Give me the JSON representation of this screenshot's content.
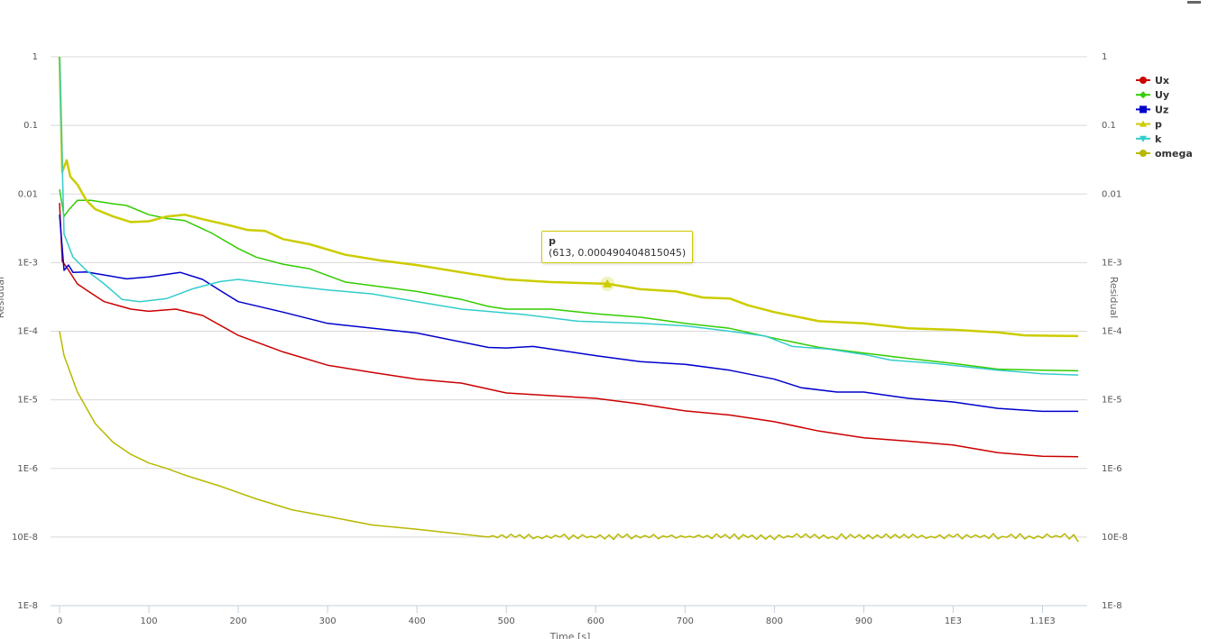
{
  "chart_data": {
    "type": "line",
    "title": "",
    "xlabel": "Time [s]",
    "ylabel": "Residual",
    "yscale": "log",
    "xlim": [
      0,
      1150
    ],
    "ylim": [
      1e-08,
      1
    ],
    "grid": true,
    "legend_position": "right",
    "x_ticks": [
      {
        "value": 0,
        "label": "0"
      },
      {
        "value": 100,
        "label": "100"
      },
      {
        "value": 200,
        "label": "200"
      },
      {
        "value": 300,
        "label": "300"
      },
      {
        "value": 400,
        "label": "400"
      },
      {
        "value": 500,
        "label": "500"
      },
      {
        "value": 600,
        "label": "600"
      },
      {
        "value": 700,
        "label": "700"
      },
      {
        "value": 800,
        "label": "800"
      },
      {
        "value": 900,
        "label": "900"
      },
      {
        "value": 1000,
        "label": "1E3"
      },
      {
        "value": 1100,
        "label": "1.1E3"
      }
    ],
    "y_ticks": [
      {
        "value": 1,
        "label": "1"
      },
      {
        "value": 0.1,
        "label": "0.1"
      },
      {
        "value": 0.01,
        "label": "0.01"
      },
      {
        "value": 0.001,
        "label": "1E-3"
      },
      {
        "value": 0.0001,
        "label": "1E-4"
      },
      {
        "value": 1e-05,
        "label": "1E-5"
      },
      {
        "value": 1e-06,
        "label": "1E-6"
      },
      {
        "value": 1e-07,
        "label": "10E-8"
      },
      {
        "value": 1e-08,
        "label": "1E-8"
      }
    ],
    "series": [
      {
        "name": "Ux",
        "color": "#cc0000",
        "marker": "circle",
        "width": 1.5,
        "points": [
          [
            0,
            0.0074
          ],
          [
            3,
            0.00105
          ],
          [
            10,
            0.00078
          ],
          [
            20,
            0.00049
          ],
          [
            30,
            0.0004
          ],
          [
            50,
            0.00027
          ],
          [
            80,
            0.00021
          ],
          [
            100,
            0.000195
          ],
          [
            130,
            0.00021
          ],
          [
            160,
            0.00017
          ],
          [
            200,
            8.7e-05
          ],
          [
            250,
            5e-05
          ],
          [
            300,
            3.2e-05
          ],
          [
            350,
            2.5e-05
          ],
          [
            400,
            2e-05
          ],
          [
            450,
            1.75e-05
          ],
          [
            500,
            1.26e-05
          ],
          [
            550,
            1.15e-05
          ],
          [
            600,
            1.05e-05
          ],
          [
            650,
            8.7e-06
          ],
          [
            700,
            6.9e-06
          ],
          [
            750,
            6e-06
          ],
          [
            800,
            4.8e-06
          ],
          [
            850,
            3.5e-06
          ],
          [
            900,
            2.8e-06
          ],
          [
            950,
            2.5e-06
          ],
          [
            1000,
            2.2e-06
          ],
          [
            1050,
            1.7e-06
          ],
          [
            1100,
            1.5e-06
          ],
          [
            1140,
            1.48e-06
          ]
        ]
      },
      {
        "name": "Uy",
        "color": "#33cc00",
        "marker": "diamond",
        "width": 1.5,
        "points": [
          [
            0,
            0.0117
          ],
          [
            5,
            0.0047
          ],
          [
            10,
            0.0058
          ],
          [
            20,
            0.0081
          ],
          [
            35,
            0.0081
          ],
          [
            60,
            0.0072
          ],
          [
            75,
            0.0068
          ],
          [
            100,
            0.005
          ],
          [
            120,
            0.0044
          ],
          [
            140,
            0.0041
          ],
          [
            170,
            0.0027
          ],
          [
            200,
            0.0016
          ],
          [
            220,
            0.0012
          ],
          [
            250,
            0.00095
          ],
          [
            280,
            0.00081
          ],
          [
            320,
            0.00052
          ],
          [
            400,
            0.00038
          ],
          [
            450,
            0.00029
          ],
          [
            480,
            0.00023
          ],
          [
            500,
            0.00021
          ],
          [
            550,
            0.00021
          ],
          [
            600,
            0.00018
          ],
          [
            650,
            0.00016
          ],
          [
            700,
            0.00013
          ],
          [
            750,
            0.00011
          ],
          [
            800,
            7.9e-05
          ],
          [
            850,
            5.8e-05
          ],
          [
            900,
            4.8e-05
          ],
          [
            950,
            4e-05
          ],
          [
            1000,
            3.4e-05
          ],
          [
            1050,
            2.8e-05
          ],
          [
            1100,
            2.7e-05
          ],
          [
            1140,
            2.65e-05
          ]
        ]
      },
      {
        "name": "Uz",
        "color": "#0000cc",
        "marker": "square",
        "width": 1.5,
        "points": [
          [
            0,
            0.005
          ],
          [
            5,
            0.00077
          ],
          [
            10,
            0.00092
          ],
          [
            15,
            0.00072
          ],
          [
            30,
            0.00073
          ],
          [
            50,
            0.00066
          ],
          [
            75,
            0.00058
          ],
          [
            100,
            0.00062
          ],
          [
            135,
            0.00072
          ],
          [
            160,
            0.00057
          ],
          [
            180,
            0.00039
          ],
          [
            200,
            0.00027
          ],
          [
            250,
            0.00019
          ],
          [
            300,
            0.00013
          ],
          [
            400,
            9.4e-05
          ],
          [
            480,
            5.8e-05
          ],
          [
            500,
            5.7e-05
          ],
          [
            530,
            6e-05
          ],
          [
            600,
            4.4e-05
          ],
          [
            650,
            3.6e-05
          ],
          [
            700,
            3.3e-05
          ],
          [
            750,
            2.7e-05
          ],
          [
            800,
            2e-05
          ],
          [
            830,
            1.5e-05
          ],
          [
            870,
            1.3e-05
          ],
          [
            900,
            1.3e-05
          ],
          [
            950,
            1.05e-05
          ],
          [
            1000,
            9.3e-06
          ],
          [
            1050,
            7.5e-06
          ],
          [
            1100,
            6.8e-06
          ],
          [
            1140,
            6.8e-06
          ]
        ]
      },
      {
        "name": "p",
        "color": "#cccc00",
        "marker": "triangle",
        "width": 2.5,
        "points": [
          [
            0,
            1
          ],
          [
            3,
            0.021
          ],
          [
            8,
            0.031
          ],
          [
            12,
            0.018
          ],
          [
            20,
            0.0137
          ],
          [
            30,
            0.0081
          ],
          [
            40,
            0.006
          ],
          [
            60,
            0.0047
          ],
          [
            80,
            0.0039
          ],
          [
            100,
            0.004
          ],
          [
            120,
            0.0047
          ],
          [
            140,
            0.005
          ],
          [
            160,
            0.0043
          ],
          [
            190,
            0.0035
          ],
          [
            210,
            0.003
          ],
          [
            230,
            0.0029
          ],
          [
            250,
            0.0022
          ],
          [
            280,
            0.00185
          ],
          [
            320,
            0.0013
          ],
          [
            360,
            0.00107
          ],
          [
            400,
            0.00092
          ],
          [
            450,
            0.00072
          ],
          [
            500,
            0.00057
          ],
          [
            550,
            0.00052
          ],
          [
            613,
            0.0004904
          ],
          [
            650,
            0.00041
          ],
          [
            690,
            0.00038
          ],
          [
            720,
            0.00031
          ],
          [
            750,
            0.0003
          ],
          [
            770,
            0.00024
          ],
          [
            800,
            0.00019
          ],
          [
            850,
            0.00014
          ],
          [
            900,
            0.00013
          ],
          [
            950,
            0.00011
          ],
          [
            1000,
            0.000105
          ],
          [
            1050,
            9.6e-05
          ],
          [
            1080,
            8.7e-05
          ],
          [
            1140,
            8.5e-05
          ]
        ]
      },
      {
        "name": "k",
        "color": "#33cccc",
        "marker": "triangle-down",
        "width": 1.5,
        "points": [
          [
            0,
            1
          ],
          [
            5,
            0.0026
          ],
          [
            15,
            0.0012
          ],
          [
            30,
            0.00077
          ],
          [
            50,
            0.00049
          ],
          [
            70,
            0.00029
          ],
          [
            90,
            0.00027
          ],
          [
            120,
            0.0003
          ],
          [
            150,
            0.00042
          ],
          [
            180,
            0.00053
          ],
          [
            200,
            0.00057
          ],
          [
            250,
            0.00047
          ],
          [
            300,
            0.0004
          ],
          [
            350,
            0.00035
          ],
          [
            400,
            0.00027
          ],
          [
            450,
            0.00021
          ],
          [
            520,
            0.000175
          ],
          [
            580,
            0.00014
          ],
          [
            650,
            0.00013
          ],
          [
            700,
            0.00012
          ],
          [
            750,
            0.0001
          ],
          [
            790,
            8.5e-05
          ],
          [
            820,
            6e-05
          ],
          [
            860,
            5.5e-05
          ],
          [
            900,
            4.6e-05
          ],
          [
            930,
            3.8e-05
          ],
          [
            980,
            3.4e-05
          ],
          [
            1050,
            2.7e-05
          ],
          [
            1100,
            2.4e-05
          ],
          [
            1140,
            2.3e-05
          ]
        ]
      },
      {
        "name": "omega",
        "color": "#b8b800",
        "marker": "circle",
        "width": 1.5,
        "points": [
          [
            0,
            0.0001
          ],
          [
            5,
            4.4e-05
          ],
          [
            20,
            1.3e-05
          ],
          [
            40,
            4.5e-06
          ],
          [
            60,
            2.4e-06
          ],
          [
            80,
            1.6e-06
          ],
          [
            100,
            1.2e-06
          ],
          [
            120,
            1e-06
          ],
          [
            140,
            8e-07
          ],
          [
            180,
            5.5e-07
          ],
          [
            220,
            3.6e-07
          ],
          [
            260,
            2.5e-07
          ],
          [
            300,
            2e-07
          ],
          [
            350,
            1.5e-07
          ],
          [
            400,
            1.3e-07
          ],
          [
            480,
            1e-07
          ]
        ],
        "oscillation": {
          "from": 480,
          "to": 1140,
          "step": 5,
          "low": 9.2e-08,
          "high": 1.12e-07,
          "end_value": 8.5e-08
        }
      }
    ],
    "tooltip": {
      "series": "p",
      "text": "(613, 0.000490404815045)"
    }
  }
}
